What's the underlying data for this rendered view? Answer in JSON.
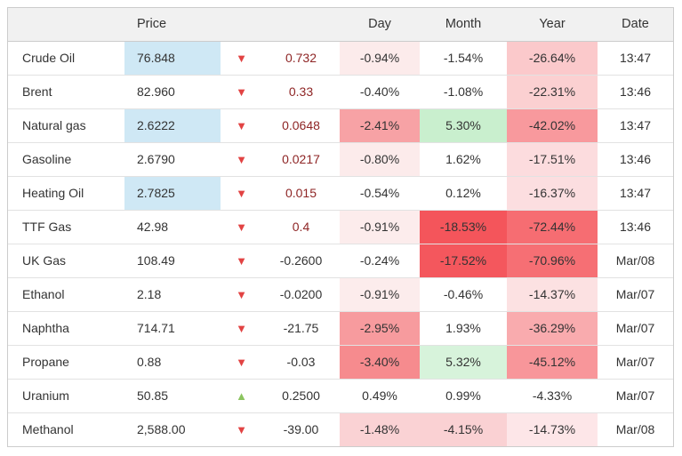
{
  "table": {
    "headers": {
      "name": "",
      "price": "Price",
      "day": "Day",
      "month": "Month",
      "year": "Year",
      "date": "Date"
    },
    "rows": [
      {
        "name": "Crude Oil",
        "price": "76.848",
        "price_highlight": true,
        "arrow": "down",
        "change": "0.732",
        "change_color": "red",
        "day": "-0.94%",
        "day_bg": "#fcebeb",
        "month": "-1.54%",
        "month_bg": "",
        "year": "-26.64%",
        "year_bg": "#fbc9cb",
        "date": "13:47"
      },
      {
        "name": "Brent",
        "price": "82.960",
        "price_highlight": false,
        "arrow": "down",
        "change": "0.33",
        "change_color": "red",
        "day": "-0.40%",
        "day_bg": "",
        "month": "-1.08%",
        "month_bg": "",
        "year": "-22.31%",
        "year_bg": "#fbd0d1",
        "date": "13:46"
      },
      {
        "name": "Natural gas",
        "price": "2.6222",
        "price_highlight": true,
        "arrow": "down",
        "change": "0.0648",
        "change_color": "red",
        "day": "-2.41%",
        "day_bg": "#f7a2a5",
        "month": "5.30%",
        "month_bg": "#c9efce",
        "year": "-42.02%",
        "year_bg": "#f8999d",
        "date": "13:47"
      },
      {
        "name": "Gasoline",
        "price": "2.6790",
        "price_highlight": false,
        "arrow": "down",
        "change": "0.0217",
        "change_color": "red",
        "day": "-0.80%",
        "day_bg": "#fcebeb",
        "month": "1.62%",
        "month_bg": "",
        "year": "-17.51%",
        "year_bg": "#fcdcde",
        "date": "13:46"
      },
      {
        "name": "Heating Oil",
        "price": "2.7825",
        "price_highlight": true,
        "arrow": "down",
        "change": "0.015",
        "change_color": "red",
        "day": "-0.54%",
        "day_bg": "",
        "month": "0.12%",
        "month_bg": "",
        "year": "-16.37%",
        "year_bg": "#fcdee0",
        "date": "13:47"
      },
      {
        "name": "TTF Gas",
        "price": "42.98",
        "price_highlight": false,
        "arrow": "down",
        "change": "0.4",
        "change_color": "red",
        "day": "-0.91%",
        "day_bg": "#fcecec",
        "month": "-18.53%",
        "month_bg": "#f4555b",
        "year": "-72.44%",
        "year_bg": "#f66d72",
        "date": "13:46"
      },
      {
        "name": "UK Gas",
        "price": "108.49",
        "price_highlight": false,
        "arrow": "down",
        "change": "-0.2600",
        "change_color": "gray",
        "day": "-0.24%",
        "day_bg": "",
        "month": "-17.52%",
        "month_bg": "#f4575d",
        "year": "-70.96%",
        "year_bg": "#f66f74",
        "date": "Mar/08"
      },
      {
        "name": "Ethanol",
        "price": "2.18",
        "price_highlight": false,
        "arrow": "down",
        "change": "-0.0200",
        "change_color": "gray",
        "day": "-0.91%",
        "day_bg": "#fcecec",
        "month": "-0.46%",
        "month_bg": "",
        "year": "-14.37%",
        "year_bg": "#fce1e2",
        "date": "Mar/07"
      },
      {
        "name": "Naphtha",
        "price": "714.71",
        "price_highlight": false,
        "arrow": "down",
        "change": "-21.75",
        "change_color": "gray",
        "day": "-2.95%",
        "day_bg": "#f79b9e",
        "month": "1.93%",
        "month_bg": "",
        "year": "-36.29%",
        "year_bg": "#f9abae",
        "date": "Mar/07"
      },
      {
        "name": "Propane",
        "price": "0.88",
        "price_highlight": false,
        "arrow": "down",
        "change": "-0.03",
        "change_color": "gray",
        "day": "-3.40%",
        "day_bg": "#f68b8e",
        "month": "5.32%",
        "month_bg": "#d7f3db",
        "year": "-45.12%",
        "year_bg": "#f8969a",
        "date": "Mar/07"
      },
      {
        "name": "Uranium",
        "price": "50.85",
        "price_highlight": false,
        "arrow": "up",
        "change": "0.2500",
        "change_color": "gray",
        "day": "0.49%",
        "day_bg": "",
        "month": "0.99%",
        "month_bg": "",
        "year": "-4.33%",
        "year_bg": "",
        "date": "Mar/07"
      },
      {
        "name": "Methanol",
        "price": "2,588.00",
        "price_highlight": false,
        "arrow": "down",
        "change": "-39.00",
        "change_color": "gray",
        "day": "-1.48%",
        "day_bg": "#fad2d4",
        "month": "-4.15%",
        "month_bg": "#fad1d3",
        "year": "-14.73%",
        "year_bg": "#fde6e8",
        "date": "Mar/08"
      }
    ]
  },
  "colors": {
    "price_highlight_bg": "#cfe8f5",
    "arrow_down": "#e24343",
    "arrow_up": "#8bc45f",
    "change_red_text": "#8e2525",
    "change_gray_text": "#333333"
  },
  "icons": {
    "arrow_down_glyph": "▼",
    "arrow_up_glyph": "▲"
  }
}
